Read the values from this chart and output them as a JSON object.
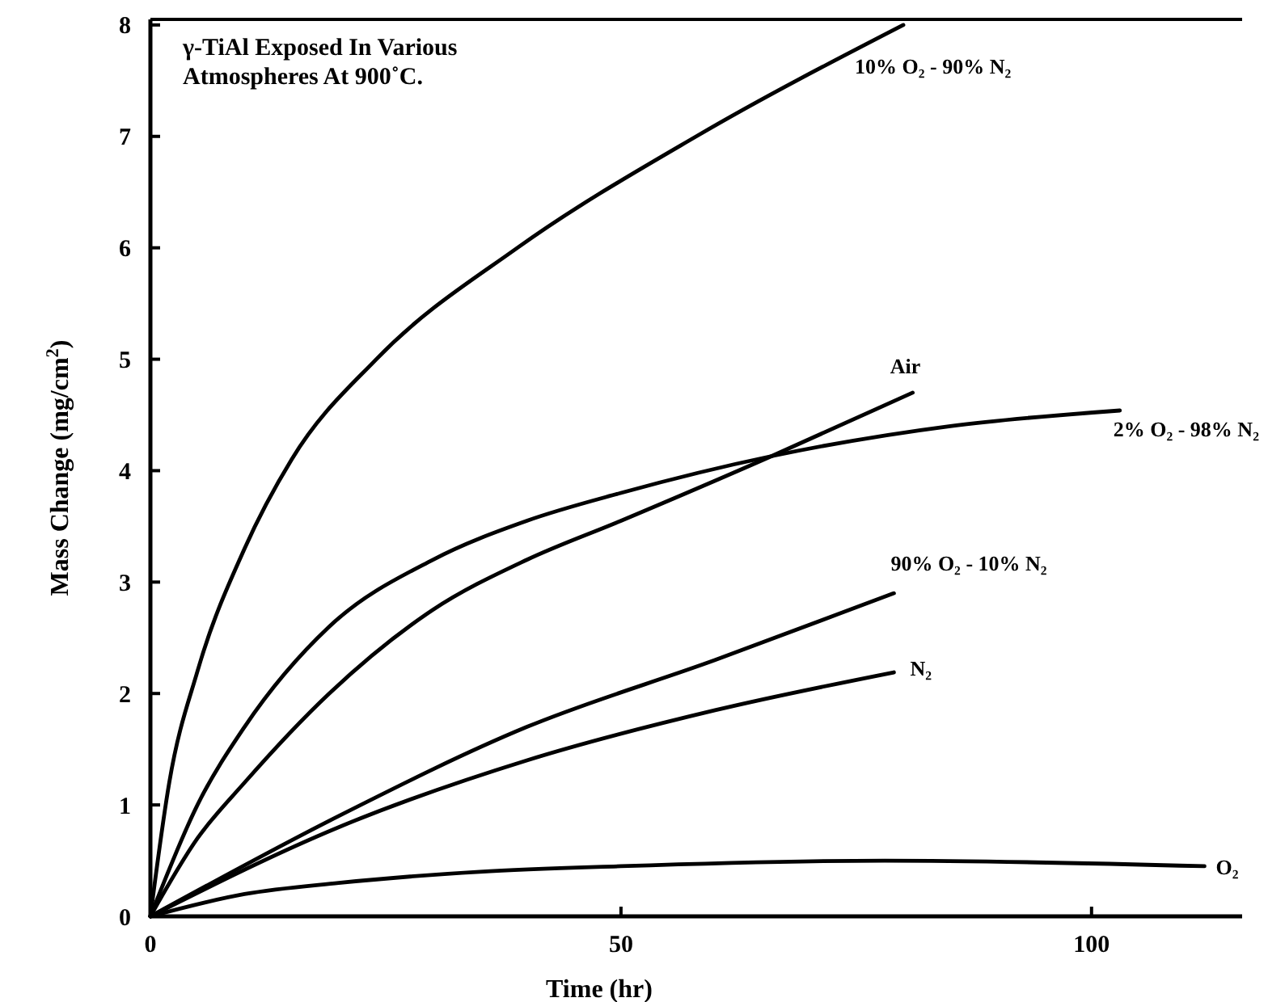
{
  "chart_data": {
    "type": "line",
    "title": "γ-TiAl Exposed In Various Atmospheres At 900˚C.",
    "xlabel": "Time (hr)",
    "ylabel": "Mass Change (mg/cm$^{2}$)",
    "xlim": [
      0,
      116
    ],
    "xticks": [
      0,
      50,
      100
    ],
    "ylim": [
      0,
      8.05
    ],
    "yticks": [
      0,
      1,
      2,
      3,
      4,
      5,
      6,
      7,
      8
    ],
    "grid": false,
    "marker": "none",
    "line_style": "solid",
    "series": [
      {
        "name": "10% O₂ - 90% N₂",
        "color": "#000000",
        "x": [
          0,
          2,
          5,
          10,
          15,
          24,
          39,
          58,
          80
        ],
        "values": [
          0,
          1.2,
          2.2,
          3.3,
          4.1,
          5.0,
          6.0,
          7.0,
          8.0
        ]
      },
      {
        "name": "Air",
        "color": "#000000",
        "x": [
          0,
          5,
          10,
          19,
          30,
          40,
          50,
          66,
          81
        ],
        "values": [
          0,
          0.7,
          1.2,
          2.0,
          2.75,
          3.2,
          3.55,
          4.13,
          4.7
        ]
      },
      {
        "name": "2% O₂ - 98% N₂",
        "color": "#000000",
        "x": [
          0,
          5,
          10,
          19,
          30,
          40,
          50,
          66,
          85,
          103
        ],
        "values": [
          0,
          1.0,
          1.7,
          2.6,
          3.2,
          3.55,
          3.8,
          4.13,
          4.4,
          4.54
        ]
      },
      {
        "name": "90% O₂ - 10% N₂",
        "color": "#000000",
        "x": [
          0,
          20,
          40,
          60,
          79
        ],
        "values": [
          0,
          0.9,
          1.7,
          2.3,
          2.9
        ]
      },
      {
        "name": "N₂",
        "color": "#000000",
        "x": [
          0,
          20,
          40,
          60,
          79
        ],
        "values": [
          0,
          0.8,
          1.4,
          1.85,
          2.19
        ]
      },
      {
        "name": "O₂",
        "color": "#000000",
        "x": [
          0,
          10,
          20,
          35,
          50,
          78,
          112
        ],
        "values": [
          0,
          0.2,
          0.3,
          0.4,
          0.45,
          0.5,
          0.45
        ]
      }
    ]
  }
}
